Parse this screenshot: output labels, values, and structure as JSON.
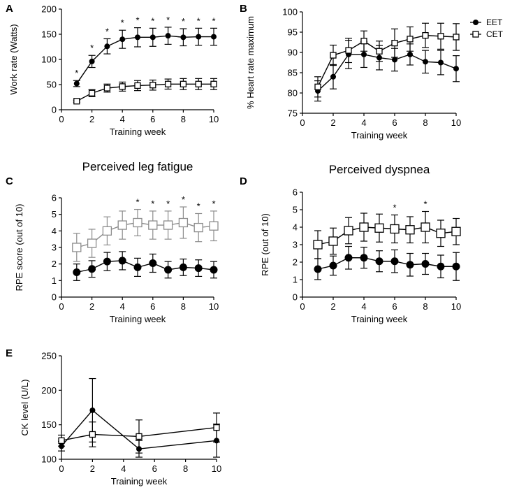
{
  "legend": [
    {
      "name": "EET",
      "marker": "filled-circle"
    },
    {
      "name": "CET",
      "marker": "open-square"
    }
  ],
  "colors": {
    "panel_c_cet": "#8c8c8c",
    "default": "#000000"
  },
  "chart_data": [
    {
      "panel": "A",
      "type": "line",
      "title": "",
      "xlabel": "Training week",
      "ylabel": "Work rate (Watts)",
      "xlim": [
        0,
        10
      ],
      "ylim": [
        0,
        200
      ],
      "xticks": [
        "0",
        "2",
        "4",
        "6",
        "8",
        "10"
      ],
      "yticks": [
        "0",
        "50",
        "100",
        "150",
        "200"
      ],
      "x": [
        1,
        2,
        3,
        4,
        5,
        6,
        7,
        8,
        9,
        10
      ],
      "series": [
        {
          "name": "EET",
          "values": [
            52,
            96,
            126,
            140,
            144,
            144,
            147,
            144,
            145,
            145
          ],
          "errors": [
            6,
            12,
            15,
            18,
            19,
            18,
            17,
            17,
            17,
            17
          ]
        },
        {
          "name": "CET",
          "values": [
            17,
            33,
            43,
            46,
            48,
            49,
            51,
            51,
            51,
            51
          ],
          "errors": [
            2,
            7,
            8,
            9,
            10,
            10,
            10,
            11,
            11,
            11
          ]
        }
      ],
      "significance_x": [
        1,
        2,
        3,
        4,
        5,
        6,
        7,
        8,
        9,
        10
      ],
      "significance_label": "*"
    },
    {
      "panel": "B",
      "type": "line",
      "title": "",
      "xlabel": "Training week",
      "ylabel": "% Heart rate maximum",
      "xlim": [
        0,
        10
      ],
      "ylim": [
        75,
        100
      ],
      "xticks": [
        "0",
        "2",
        "4",
        "6",
        "8",
        "10"
      ],
      "yticks": [
        "75",
        "80",
        "85",
        "90",
        "95",
        "100"
      ],
      "x": [
        1,
        2,
        3,
        4,
        5,
        6,
        7,
        8,
        9,
        10
      ],
      "series": [
        {
          "name": "EET",
          "values": [
            80.5,
            84,
            89.5,
            89.5,
            88.7,
            88.2,
            89.5,
            87.7,
            87.5,
            86
          ],
          "errors": [
            2.5,
            3,
            3.5,
            3.2,
            3,
            2.8,
            2.6,
            2.8,
            3,
            3.2
          ]
        },
        {
          "name": "CET",
          "values": [
            81.5,
            89.3,
            90.5,
            92.8,
            90.3,
            92.3,
            93.3,
            94.2,
            94,
            93.8
          ],
          "errors": [
            2.5,
            2.5,
            3,
            2.5,
            2.5,
            3.5,
            3,
            3,
            3.2,
            3.3
          ]
        }
      ],
      "significance_x": [],
      "significance_label": "*"
    },
    {
      "panel": "C",
      "type": "line",
      "title": "Perceived leg fatigue",
      "xlabel": "Training week",
      "ylabel": "RPE score (out of 10)",
      "xlim": [
        0,
        10
      ],
      "ylim": [
        0,
        6
      ],
      "xticks": [
        "0",
        "2",
        "4",
        "6",
        "8",
        "10"
      ],
      "yticks": [
        "0",
        "1",
        "2",
        "3",
        "4",
        "5",
        "6"
      ],
      "x": [
        1,
        2,
        3,
        4,
        5,
        6,
        7,
        8,
        9,
        10
      ],
      "series": [
        {
          "name": "EET",
          "values": [
            1.5,
            1.7,
            2.15,
            2.2,
            1.8,
            2.05,
            1.65,
            1.8,
            1.75,
            1.65
          ],
          "errors": [
            0.5,
            0.5,
            0.55,
            0.55,
            0.55,
            0.55,
            0.5,
            0.5,
            0.5,
            0.5
          ]
        },
        {
          "name": "CET",
          "values": [
            3.0,
            3.25,
            4.0,
            4.35,
            4.5,
            4.35,
            4.35,
            4.5,
            4.2,
            4.3
          ],
          "errors": [
            0.85,
            0.85,
            0.85,
            0.85,
            0.8,
            0.85,
            0.85,
            0.95,
            0.85,
            0.9
          ]
        }
      ],
      "significance_x": [
        5,
        6,
        7,
        8,
        9,
        10
      ],
      "significance_label": "*"
    },
    {
      "panel": "D",
      "type": "line",
      "title": "Perceived dyspnea",
      "xlabel": "Training week",
      "ylabel": "RPE (out of 10)",
      "xlim": [
        0,
        10
      ],
      "ylim": [
        0,
        6
      ],
      "xticks": [
        "0",
        "2",
        "4",
        "6",
        "8",
        "10"
      ],
      "yticks": [
        "0",
        "1",
        "2",
        "3",
        "4",
        "5",
        "6"
      ],
      "x": [
        1,
        2,
        3,
        4,
        5,
        6,
        7,
        8,
        9,
        10
      ],
      "series": [
        {
          "name": "EET",
          "values": [
            1.6,
            1.8,
            2.25,
            2.25,
            2.05,
            2.05,
            1.85,
            1.9,
            1.75,
            1.75
          ],
          "errors": [
            0.6,
            0.55,
            0.65,
            0.6,
            0.6,
            0.65,
            0.65,
            0.6,
            0.65,
            0.8
          ]
        },
        {
          "name": "CET",
          "values": [
            3.0,
            3.2,
            3.8,
            4.0,
            3.95,
            3.9,
            3.85,
            4.0,
            3.65,
            3.75
          ],
          "errors": [
            0.8,
            0.75,
            0.75,
            0.8,
            0.8,
            0.8,
            0.75,
            0.9,
            0.75,
            0.75
          ]
        }
      ],
      "significance_x": [
        6,
        8
      ],
      "significance_label": "*"
    },
    {
      "panel": "E",
      "type": "line",
      "title": "",
      "xlabel": "Training week",
      "ylabel": "CK level (U/L)",
      "xlim": [
        0,
        10
      ],
      "ylim": [
        100,
        250
      ],
      "xticks": [
        "0",
        "2",
        "4",
        "6",
        "8",
        "10"
      ],
      "yticks": [
        "100",
        "150",
        "200",
        "250"
      ],
      "x": [
        0,
        2,
        5,
        10
      ],
      "series": [
        {
          "name": "EET",
          "values": [
            119,
            171,
            115,
            127
          ],
          "errors": [
            7,
            46,
            12,
            24
          ]
        },
        {
          "name": "CET",
          "values": [
            127,
            136,
            133,
            146
          ],
          "errors": [
            8,
            18,
            24,
            21
          ]
        }
      ],
      "significance_x": [],
      "significance_label": "*"
    }
  ]
}
